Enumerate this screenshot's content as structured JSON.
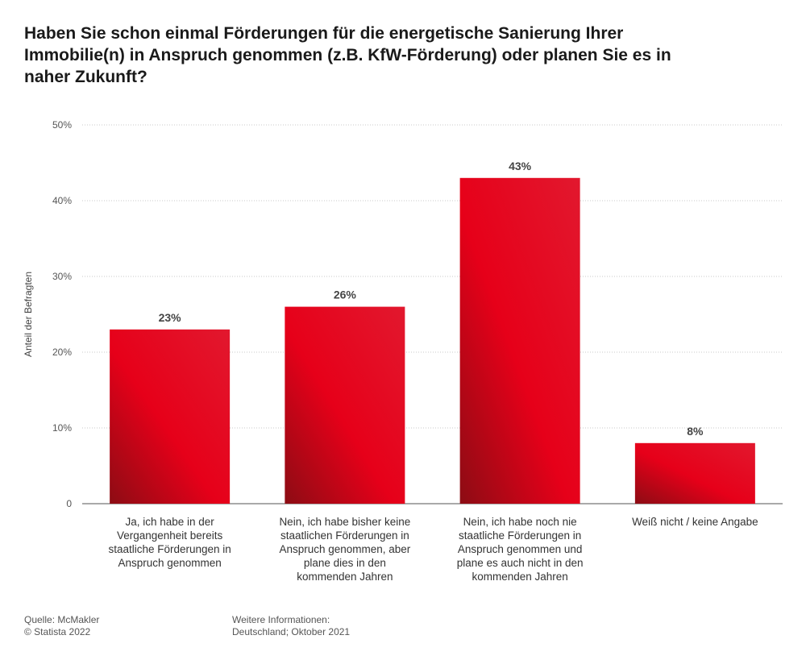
{
  "title": "Haben Sie schon einmal Förderungen für die energetische Sanierung Ihrer Immobilie(n) in Anspruch genommen (z.B. KfW-Förderung) oder planen Sie es in naher Zukunft?",
  "chart_data": {
    "type": "bar",
    "title": "Haben Sie schon einmal Förderungen für die energetische Sanierung Ihrer Immobilie(n) in Anspruch genommen (z.B. KfW-Förderung) oder planen Sie es in naher Zukunft?",
    "categories": [
      "Ja, ich habe in der Vergangenheit bereits staatliche Förderungen in Anspruch genommen",
      "Nein, ich habe bisher keine staatlichen Förderungen in Anspruch genommen, aber plane dies in den kommenden Jahren",
      "Nein, ich habe noch nie staatliche Förderungen in Anspruch genommen und plane es auch nicht in den kommenden Jahren",
      "Weiß nicht / keine Angabe"
    ],
    "category_lines": [
      [
        "Ja, ich habe in der",
        "Vergangenheit bereits",
        "staatliche Förderungen in",
        "Anspruch genommen"
      ],
      [
        "Nein, ich habe bisher keine",
        "staatlichen Förderungen in",
        "Anspruch genommen, aber",
        "plane dies in den",
        "kommenden Jahren"
      ],
      [
        "Nein, ich habe noch nie",
        "staatliche Förderungen in",
        "Anspruch genommen und",
        "plane es auch nicht in den",
        "kommenden Jahren"
      ],
      [
        "Weiß nicht / keine Angabe"
      ]
    ],
    "values": [
      23,
      26,
      43,
      8
    ],
    "data_labels": [
      "23%",
      "26%",
      "43%",
      "8%"
    ],
    "xlabel": "",
    "ylabel": "Anteil der Befragten",
    "ylim": [
      0,
      50
    ],
    "yticks": [
      0,
      10,
      20,
      30,
      40,
      50
    ],
    "ytick_labels": [
      "0",
      "10%",
      "20%",
      "30%",
      "40%",
      "50%"
    ],
    "grid": true,
    "bar_color": "#e60019",
    "bar_color_dark": "#8c0c14"
  },
  "footer": {
    "source_label": "Quelle: McMakler",
    "copyright": "© Statista 2022",
    "info_label": "Weitere Informationen:",
    "info_value": "Deutschland; Oktober 2021"
  }
}
